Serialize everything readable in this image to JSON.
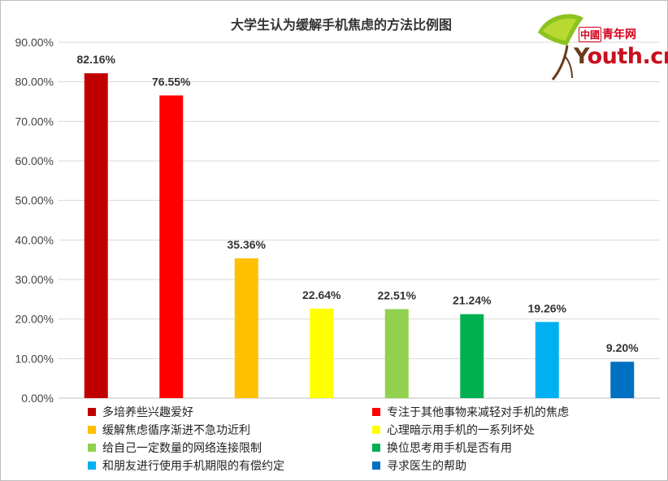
{
  "chart_data": {
    "type": "bar",
    "title": "大学生认为缓解手机焦虑的方法比例图",
    "xlabel": "",
    "ylabel": "",
    "ylim": [
      0,
      90
    ],
    "yticks": [
      "0.00%",
      "10.00%",
      "20.00%",
      "30.00%",
      "40.00%",
      "50.00%",
      "60.00%",
      "70.00%",
      "80.00%",
      "90.00%"
    ],
    "grid": true,
    "legend_position": "bottom",
    "categories": [
      "多培养些兴趣爱好",
      "专注于其他事物来减轻对手机的焦虑",
      "缓解焦虑循序渐进不急功近利",
      "心理暗示用手机的一系列坏处",
      "给自己一定数量的网络连接限制",
      "换位思考用手机是否有用",
      "和朋友进行使用手机期限的有偿约定",
      "寻求医生的帮助"
    ],
    "values": [
      82.16,
      76.55,
      35.36,
      22.64,
      22.51,
      21.24,
      19.26,
      9.2
    ],
    "value_labels": [
      "82.16%",
      "76.55%",
      "35.36%",
      "22.64%",
      "22.51%",
      "21.24%",
      "19.26%",
      "9.20%"
    ],
    "colors": [
      "#c00000",
      "#ff0000",
      "#ffc000",
      "#ffff00",
      "#92d050",
      "#00b050",
      "#00b0f0",
      "#0070c0"
    ]
  },
  "logo": {
    "cn_tag": "中國",
    "cn_text": "青年网",
    "en_prefix": "Y",
    "en_text": "outh.cn"
  }
}
